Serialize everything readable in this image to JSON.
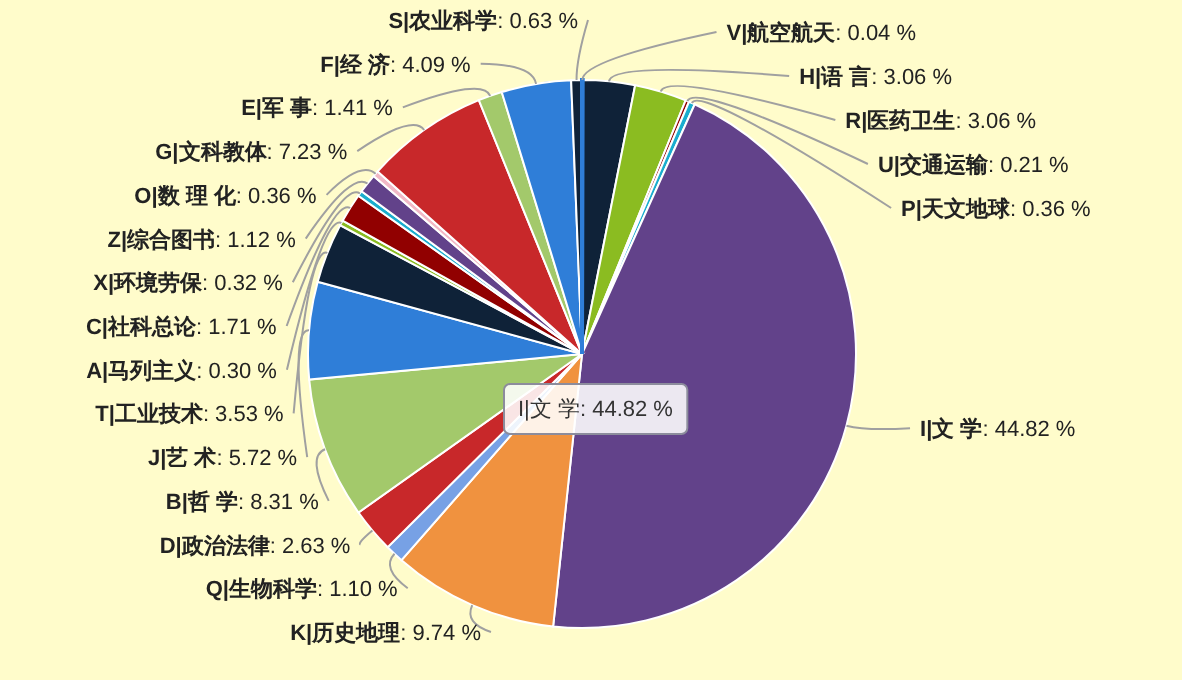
{
  "chart_data": {
    "type": "pie",
    "categories": [
      "V|航空航天",
      "H|语 言",
      "R|医药卫生",
      "U|交通运输",
      "P|天文地球",
      "I|文 学",
      "K|历史地理",
      "Q|生物科学",
      "D|政治法律",
      "B|哲 学",
      "J|艺 术",
      "T|工业技术",
      "A|马列主义",
      "C|社科总论",
      "X|环境劳保",
      "Z|综合图书",
      "O|数 理 化",
      "G|文科教体",
      "E|军 事",
      "F|经 济",
      "S|农业科学"
    ],
    "values": [
      0.04,
      3.06,
      3.06,
      0.21,
      0.36,
      44.82,
      9.74,
      1.1,
      2.63,
      8.31,
      5.72,
      3.53,
      0.3,
      1.71,
      0.32,
      1.12,
      0.36,
      7.23,
      1.41,
      4.09,
      0.63
    ],
    "colors": [
      "#2f7ed8",
      "#0f2238",
      "#8bbc21",
      "#910000",
      "#1aadce",
      "#62428a",
      "#f0923f",
      "#77a1e5",
      "#c8282a",
      "#a3c96b",
      "#2f7ed8",
      "#0f2238",
      "#8bbc21",
      "#910000",
      "#1aadce",
      "#62428a",
      "#f2b8c6",
      "#c8282a",
      "#a3c96b",
      "#2f7ed8",
      "#0f2238"
    ],
    "value_labels": [
      ": 0.04 %",
      ": 3.06 %",
      ": 3.06 %",
      ": 0.21 %",
      ": 0.36 %",
      ": 44.82 %",
      ": 9.74 %",
      ": 1.10 %",
      ": 2.63 %",
      ": 8.31 %",
      ": 5.72 %",
      ": 3.53 %",
      ": 0.30 %",
      ": 1.71 %",
      ": 0.32 %",
      ": 1.12 %",
      ": 0.36 %",
      ": 7.23 %",
      ": 1.41 %",
      ": 4.09 %",
      ": 0.63 %"
    ],
    "annotations": [
      "I|文 学: 44.82 %"
    ]
  }
}
